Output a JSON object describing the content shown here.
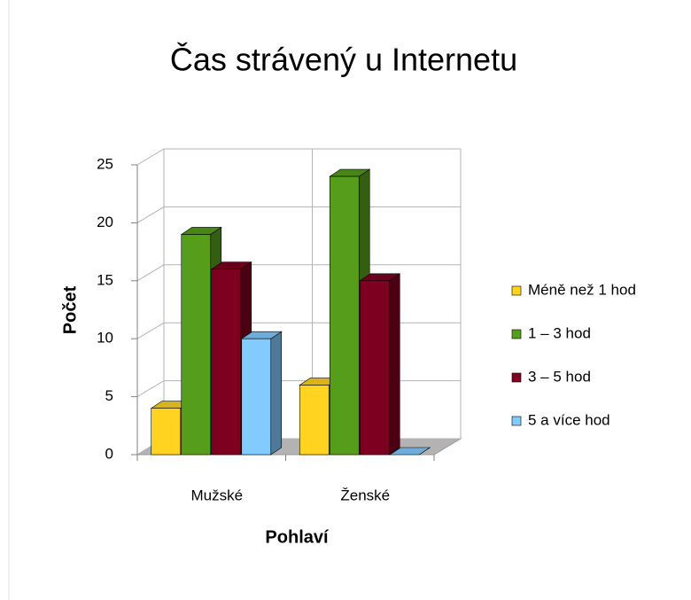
{
  "chart_data": {
    "type": "bar3d",
    "title": "Čas strávený u Internetu",
    "xlabel": "Pohlaví",
    "ylabel": "Počet",
    "categories": [
      "Mužské",
      "Ženské"
    ],
    "series": [
      {
        "name": "Méně než 1 hod",
        "color": "#ffd320",
        "values": [
          4,
          6
        ]
      },
      {
        "name": "1 – 3 hod",
        "color": "#579d1c",
        "values": [
          19,
          24
        ]
      },
      {
        "name": "3 – 5 hod",
        "color": "#7e0021",
        "values": [
          16,
          15
        ]
      },
      {
        "name": "5 a více hod",
        "color": "#83caff",
        "values": [
          10,
          0
        ]
      }
    ],
    "ylim": [
      0,
      25
    ],
    "yticks": [
      0,
      5,
      10,
      15,
      20,
      25
    ],
    "grid": true,
    "legend": "right"
  }
}
